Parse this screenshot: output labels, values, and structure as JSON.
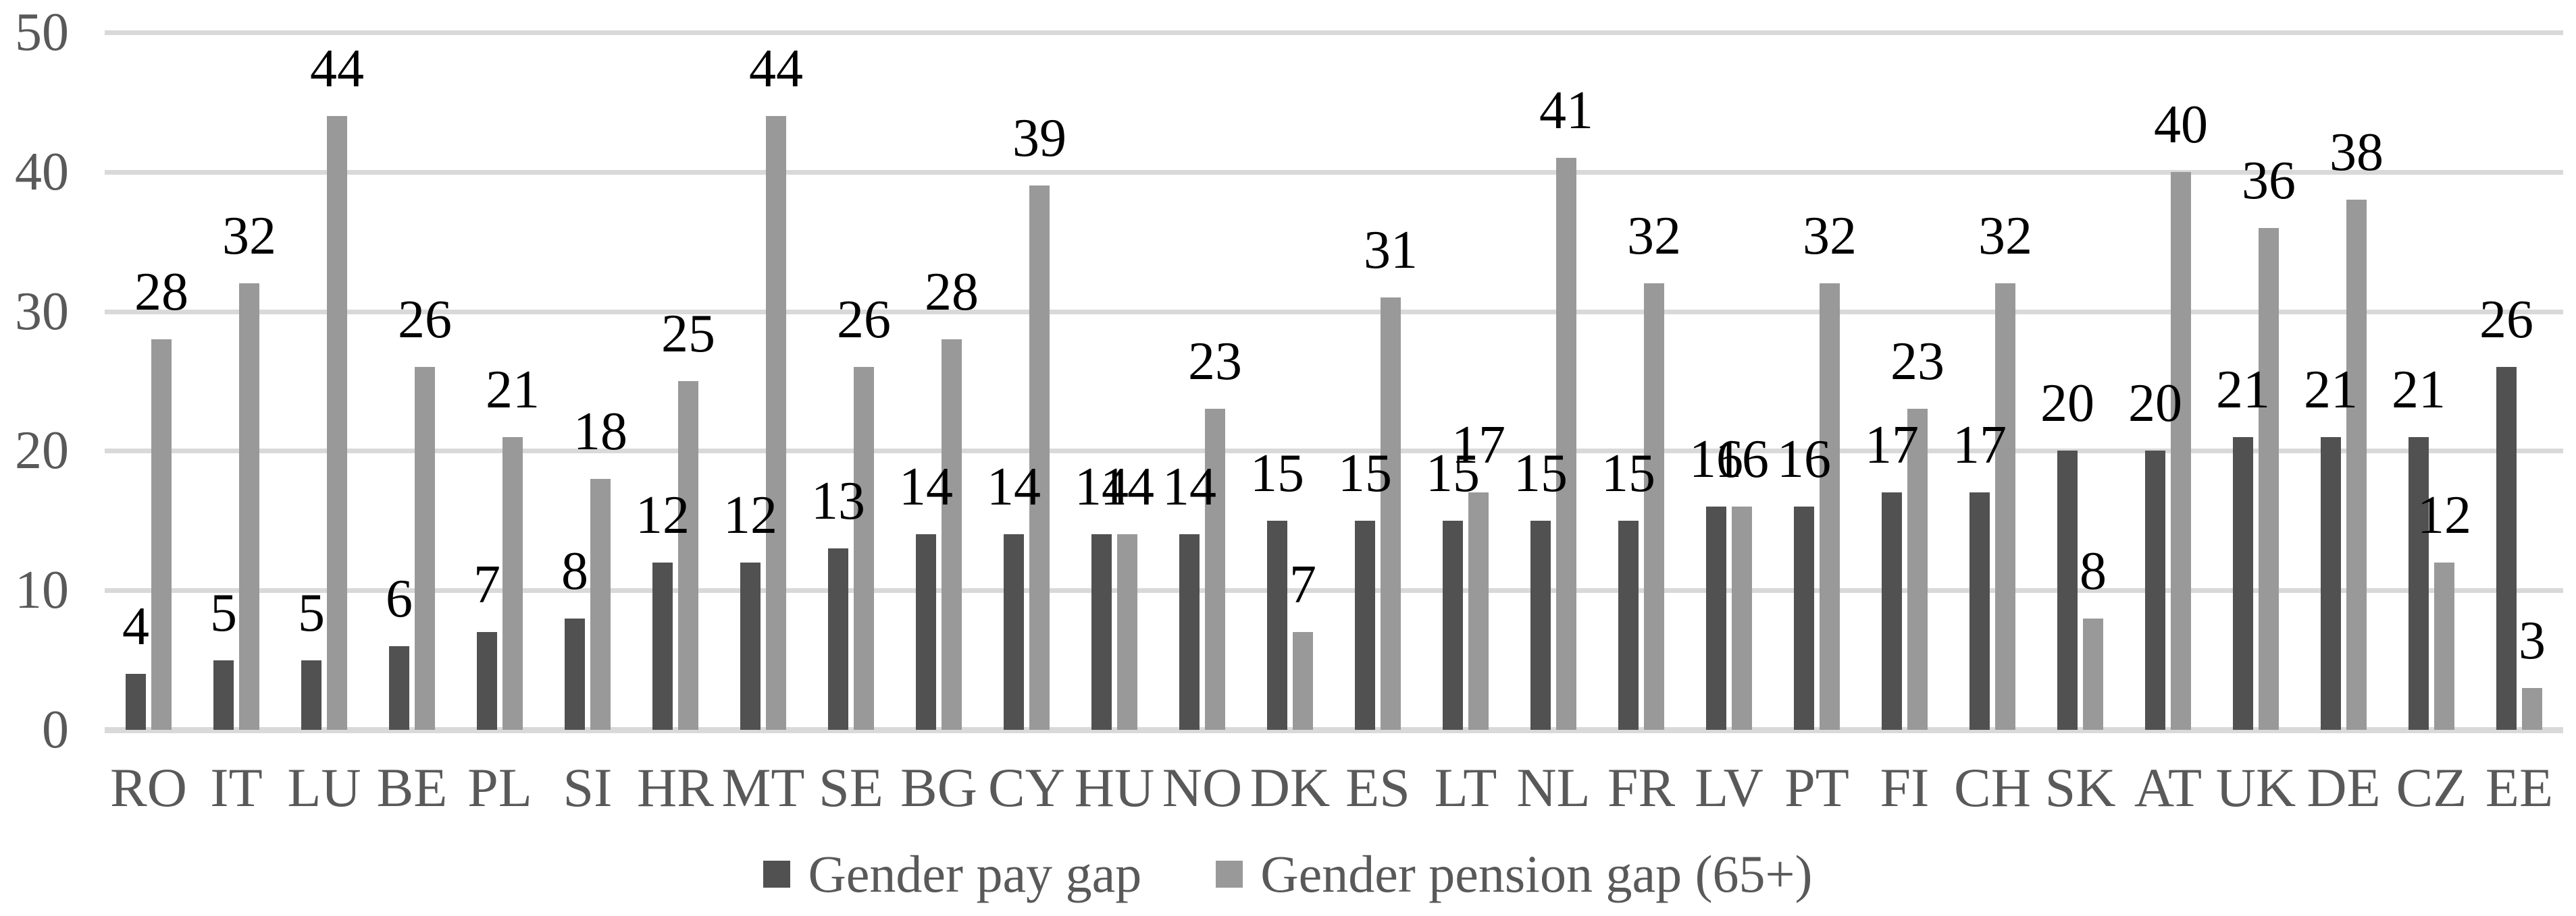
{
  "chart_data": {
    "type": "bar",
    "title": "",
    "xlabel": "",
    "ylabel": "",
    "categories": [
      "RO",
      "IT",
      "LU",
      "BE",
      "PL",
      "SI",
      "HR",
      "MT",
      "SE",
      "BG",
      "CY",
      "HU",
      "NO",
      "DK",
      "ES",
      "LT",
      "NL",
      "FR",
      "LV",
      "PT",
      "FI",
      "CH",
      "SK",
      "AT",
      "UK",
      "DE",
      "CZ",
      "EE"
    ],
    "series": [
      {
        "name": "Gender pay gap",
        "color": "#515151",
        "values": [
          4,
          5,
          5,
          6,
          7,
          8,
          12,
          12,
          13,
          14,
          14,
          14,
          14,
          15,
          15,
          15,
          15,
          15,
          16,
          16,
          17,
          17,
          20,
          20,
          21,
          21,
          21,
          26
        ]
      },
      {
        "name": "Gender pension gap (65+)",
        "color": "#999999",
        "values": [
          28,
          32,
          44,
          26,
          21,
          18,
          25,
          44,
          26,
          28,
          39,
          14,
          23,
          7,
          31,
          17,
          41,
          32,
          16,
          32,
          23,
          32,
          8,
          40,
          36,
          38,
          12,
          3
        ]
      }
    ],
    "ylim": [
      0,
      50
    ],
    "yticks": [
      0,
      10,
      20,
      30,
      40,
      50
    ],
    "grid": true,
    "data_labels": true,
    "legend_position": "bottom"
  },
  "colors": {
    "grid": "#d9d9d9",
    "axis_text": "#595959",
    "value_label_text": "#000000",
    "background": "#ffffff"
  }
}
